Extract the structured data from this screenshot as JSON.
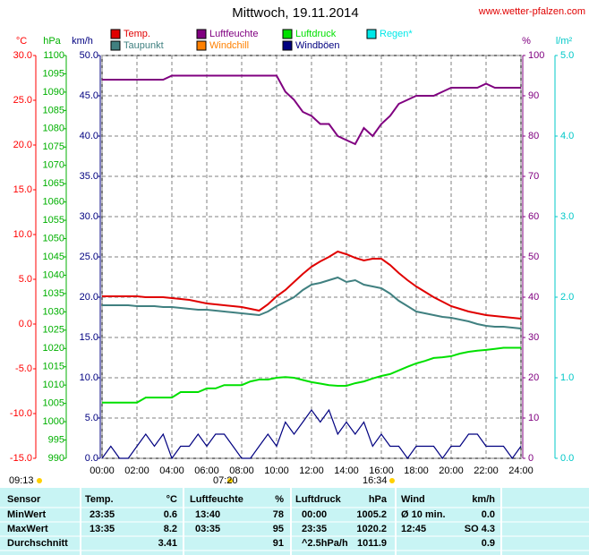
{
  "chart_data": {
    "type": "line",
    "title": "Mittwoch, 19.11.2014",
    "source": "www.wetter-pfalzen.com",
    "xlim": [
      0,
      24
    ],
    "xticks": [
      {
        "value": 0,
        "label": "00:00"
      },
      {
        "value": 2,
        "label": "02:00"
      },
      {
        "value": 4,
        "label": "04:00"
      },
      {
        "value": 6,
        "label": "06:00"
      },
      {
        "value": 8,
        "label": "08:00"
      },
      {
        "value": 10,
        "label": "10:00"
      },
      {
        "value": 12,
        "label": "12:00"
      },
      {
        "value": 14,
        "label": "14:00"
      },
      {
        "value": 16,
        "label": "16:00"
      },
      {
        "value": 18,
        "label": "18:00"
      },
      {
        "value": 20,
        "label": "20:00"
      },
      {
        "value": 22,
        "label": "22:00"
      },
      {
        "value": 24,
        "label": "24:00"
      }
    ],
    "grid": true,
    "axes": [
      {
        "label": "°C",
        "color": "#ff0000",
        "lim": [
          -15,
          30
        ],
        "ticks": [
          {
            "value": -15,
            "label": "-15.0"
          },
          {
            "value": -10,
            "label": "-10.0"
          },
          {
            "value": -5,
            "label": "-5.0"
          },
          {
            "value": 0,
            "label": "0.0"
          },
          {
            "value": 5,
            "label": "5.0"
          },
          {
            "value": 10,
            "label": "10.0"
          },
          {
            "value": 15,
            "label": "15.0"
          },
          {
            "value": 20,
            "label": "20.0"
          },
          {
            "value": 25,
            "label": "25.0"
          },
          {
            "value": 30,
            "label": "30.0"
          }
        ]
      },
      {
        "label": "hPa",
        "color": "#00b000",
        "lim": [
          990,
          1100
        ],
        "ticks": [
          990,
          995,
          1000,
          1005,
          1010,
          1015,
          1020,
          1025,
          1030,
          1035,
          1040,
          1045,
          1050,
          1055,
          1060,
          1065,
          1070,
          1075,
          1080,
          1085,
          1090,
          1095,
          1100
        ]
      },
      {
        "label": "km/h",
        "color": "#000080",
        "lim": [
          0,
          50
        ],
        "ticks": [
          {
            "value": 0,
            "label": "0.0"
          },
          {
            "value": 5,
            "label": "5.0"
          },
          {
            "value": 10,
            "label": "10.0"
          },
          {
            "value": 15,
            "label": "15.0"
          },
          {
            "value": 20,
            "label": "20.0"
          },
          {
            "value": 25,
            "label": "25.0"
          },
          {
            "value": 30,
            "label": "30.0"
          },
          {
            "value": 35,
            "label": "35.0"
          },
          {
            "value": 40,
            "label": "40.0"
          },
          {
            "value": 45,
            "label": "45.0"
          },
          {
            "value": 50,
            "label": "50.0"
          }
        ]
      },
      {
        "label": "%",
        "color": "#800080",
        "lim": [
          0,
          100
        ],
        "ticks": [
          0,
          10,
          20,
          30,
          40,
          50,
          60,
          70,
          80,
          90,
          100
        ]
      },
      {
        "label": "l/m²",
        "color": "#00c8c8",
        "lim": [
          0,
          5
        ],
        "ticks": [
          {
            "value": 0,
            "label": "0.0"
          },
          {
            "value": 1,
            "label": "1.0"
          },
          {
            "value": 2,
            "label": "2.0"
          },
          {
            "value": 3,
            "label": "3.0"
          },
          {
            "value": 4,
            "label": "4.0"
          },
          {
            "value": 5,
            "label": "5.0"
          }
        ]
      }
    ],
    "x": [
      0,
      0.5,
      1,
      1.5,
      2,
      2.5,
      3,
      3.5,
      4,
      4.5,
      5,
      5.5,
      6,
      6.5,
      7,
      7.5,
      8,
      8.5,
      9,
      9.5,
      10,
      10.5,
      11,
      11.5,
      12,
      12.5,
      13,
      13.5,
      14,
      14.5,
      15,
      15.5,
      16,
      16.5,
      17,
      17.5,
      18,
      18.5,
      19,
      19.5,
      20,
      20.5,
      21,
      21.5,
      22,
      22.5,
      23,
      23.5,
      24
    ],
    "series": [
      {
        "name": "Temp.",
        "color": "#e00000",
        "axis": 0,
        "values": [
          3.1,
          3.1,
          3.1,
          3.1,
          3.1,
          3.0,
          3.0,
          3.0,
          2.9,
          2.8,
          2.7,
          2.5,
          2.3,
          2.2,
          2.1,
          2.0,
          1.9,
          1.7,
          1.5,
          2.2,
          3.1,
          3.8,
          4.7,
          5.6,
          6.4,
          7.0,
          7.5,
          8.1,
          7.8,
          7.4,
          7.1,
          7.3,
          7.3,
          6.6,
          5.7,
          4.9,
          4.2,
          3.6,
          3.0,
          2.5,
          2.0,
          1.7,
          1.4,
          1.2,
          1.0,
          0.9,
          0.8,
          0.7,
          0.6
        ]
      },
      {
        "name": "Luftfeuchte",
        "color": "#800080",
        "axis": 3,
        "values": [
          94,
          94,
          94,
          94,
          94,
          94,
          94,
          94,
          95,
          95,
          95,
          95,
          95,
          95,
          95,
          95,
          95,
          95,
          95,
          95,
          95,
          91,
          89,
          86,
          85,
          83,
          83,
          80,
          79,
          78,
          82,
          80,
          83,
          85,
          88,
          89,
          90,
          90,
          90,
          91,
          92,
          92,
          92,
          92,
          93,
          92,
          92,
          92,
          92
        ]
      },
      {
        "name": "Luftdruck",
        "color": "#00e000",
        "axis": 1,
        "values": [
          1005.2,
          1005.2,
          1005.2,
          1005.2,
          1005.2,
          1006.6,
          1006.6,
          1006.6,
          1006.6,
          1008.1,
          1008.1,
          1008.1,
          1009.1,
          1009.1,
          1010.0,
          1010.0,
          1010.0,
          1011.0,
          1011.5,
          1011.5,
          1012.0,
          1012.2,
          1012.0,
          1011.4,
          1010.8,
          1010.4,
          1010.0,
          1009.8,
          1009.8,
          1010.5,
          1011.0,
          1011.8,
          1012.5,
          1013.0,
          1014.0,
          1015.0,
          1015.9,
          1016.6,
          1017.4,
          1017.6,
          1017.9,
          1018.6,
          1019.1,
          1019.4,
          1019.6,
          1019.9,
          1020.2,
          1020.2,
          1020.2
        ]
      },
      {
        "name": "Taupunkt",
        "color": "#408080",
        "axis": 0,
        "values": [
          2.1,
          2.1,
          2.1,
          2.1,
          2.0,
          2.0,
          2.0,
          1.9,
          1.9,
          1.8,
          1.7,
          1.6,
          1.6,
          1.5,
          1.4,
          1.3,
          1.2,
          1.1,
          1.0,
          1.4,
          2.0,
          2.5,
          3.0,
          3.8,
          4.4,
          4.6,
          4.9,
          5.2,
          4.7,
          4.9,
          4.4,
          4.2,
          4.0,
          3.4,
          2.6,
          2.0,
          1.4,
          1.2,
          1.0,
          0.8,
          0.7,
          0.5,
          0.3,
          0.0,
          -0.2,
          -0.3,
          -0.3,
          -0.4,
          -0.5
        ]
      },
      {
        "name": "Windböen",
        "color": "#000080",
        "axis": 2,
        "values": [
          0,
          1.5,
          0,
          0,
          1.5,
          3,
          1.5,
          3,
          0,
          1.5,
          1.5,
          3,
          1.5,
          3,
          3,
          1.5,
          0,
          0,
          1.5,
          3,
          1.5,
          4.5,
          3,
          4.5,
          6,
          4.5,
          6,
          3,
          4.5,
          3,
          4.5,
          1.5,
          3,
          1.5,
          1.5,
          0,
          1.5,
          1.5,
          1.5,
          0,
          1.5,
          1.5,
          3,
          3,
          1.5,
          1.5,
          1.5,
          0,
          1.5
        ]
      }
    ],
    "legend_only": [
      {
        "name": "Regen*",
        "color": "#00e8e8"
      },
      {
        "name": "Windchill",
        "color": "#ff8000"
      }
    ],
    "sun_times": [
      "09:13",
      "07:20",
      "16:34"
    ]
  },
  "table": {
    "header": [
      "Sensor",
      "Temp.",
      "°C",
      "Luftfeuchte",
      "%",
      "Luftdruck",
      "hPa",
      "Wind",
      "km/h"
    ],
    "rows": [
      [
        "MinWert",
        "23:35",
        "0.6",
        "13:40",
        "78",
        "00:00",
        "1005.2",
        "Ø 10 min.",
        "0.0"
      ],
      [
        "MaxWert",
        "13:35",
        "8.2",
        "03:35",
        "95",
        "23:35",
        "1020.2",
        "12:45",
        "SO 4.3"
      ],
      [
        "Durchschnitt",
        null,
        "3.41",
        null,
        "91",
        "^2.5hPa/h",
        "1011.9",
        null,
        "0.9"
      ]
    ]
  }
}
